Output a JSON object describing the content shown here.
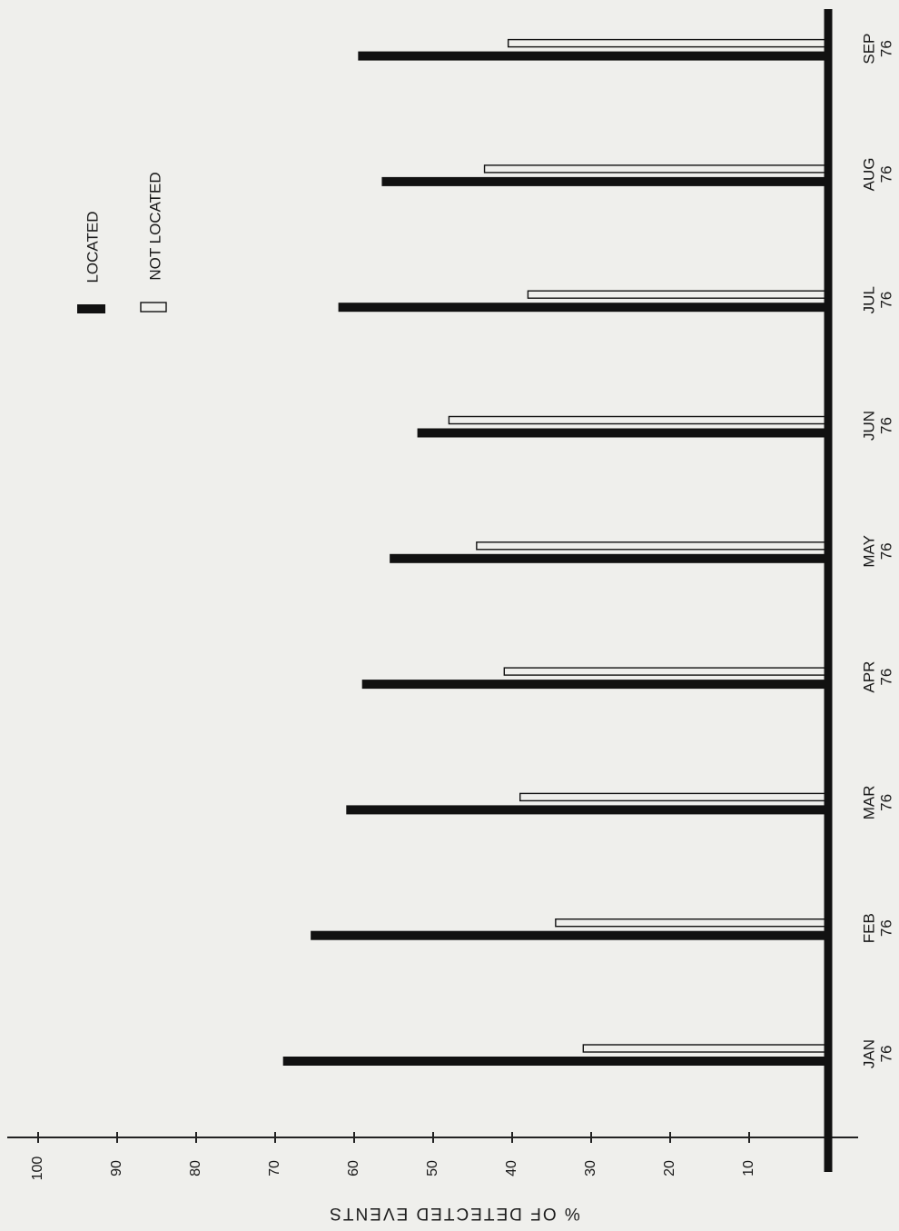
{
  "chart_data": {
    "type": "bar",
    "orientation": "horizontal",
    "categories": [
      {
        "month": "JAN",
        "year": "76"
      },
      {
        "month": "FEB",
        "year": "76"
      },
      {
        "month": "MAR",
        "year": "76"
      },
      {
        "month": "APR",
        "year": "76"
      },
      {
        "month": "MAY",
        "year": "76"
      },
      {
        "month": "JUN",
        "year": "76"
      },
      {
        "month": "JUL",
        "year": "76"
      },
      {
        "month": "AUG",
        "year": "76"
      },
      {
        "month": "SEP",
        "year": "76"
      }
    ],
    "series": [
      {
        "name": "LOCATED",
        "style": "filled",
        "color": "#111111",
        "values": [
          69,
          65.5,
          61,
          59,
          55.5,
          52,
          62,
          56.5,
          59.5
        ]
      },
      {
        "name": "NOT LOCATED",
        "style": "outline",
        "color": "#111111",
        "values": [
          31,
          34.5,
          39,
          41,
          44.5,
          48,
          38,
          43.5,
          40.5
        ]
      }
    ],
    "ylabel": "% OF DETECTED EVENTS",
    "yticks": [
      10,
      20,
      30,
      40,
      50,
      60,
      70,
      80,
      90,
      100
    ],
    "ylim": [
      0,
      105
    ],
    "legend": {
      "placement": "top",
      "entries": [
        "LOCATED",
        "NOT LOCATED"
      ]
    },
    "grid": false
  }
}
